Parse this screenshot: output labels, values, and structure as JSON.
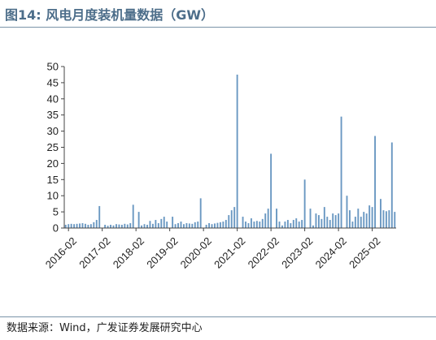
{
  "title": "图14:  风电月度装机量数据（GW）",
  "source": "数据来源：Wind，广发证券发展研究中心",
  "colors": {
    "bar": "#6a98c2",
    "title": "#4d6e8a",
    "axis": "#444444"
  },
  "chart_data": {
    "type": "bar",
    "title": "风电月度装机量数据（GW）",
    "xlabel": "",
    "ylabel": "",
    "ylim": [
      0,
      50
    ],
    "yticks": [
      0,
      5,
      10,
      15,
      20,
      25,
      30,
      35,
      40,
      45,
      50
    ],
    "xtick_labels": [
      "2016-02",
      "2017-02",
      "2018-02",
      "2019-02",
      "2020-02",
      "2021-02",
      "2022-02",
      "2023-02",
      "2024-02",
      "2025-02"
    ],
    "grid": false,
    "legend": "none",
    "start": "2016-01",
    "values": [
      1.0,
      1.2,
      1.3,
      1.2,
      1.3,
      1.4,
      1.5,
      1.3,
      1.0,
      1.2,
      1.8,
      2.5,
      6.8,
      0,
      1.0,
      0.7,
      1.0,
      0.8,
      1.2,
      1.1,
      1.0,
      1.3,
      1.1,
      1.5,
      7.2,
      0,
      5.0,
      0.8,
      1.2,
      1.0,
      2.2,
      1.3,
      2.5,
      1.5,
      2.8,
      3.5,
      2.0,
      0,
      3.5,
      1.2,
      1.5,
      2.0,
      1.2,
      1.5,
      1.4,
      1.3,
      1.8,
      2.0,
      9.2,
      0,
      1.0,
      1.5,
      1.2,
      1.4,
      1.6,
      1.8,
      2.0,
      2.5,
      4.0,
      5.5,
      6.5,
      47.5,
      0,
      3.5,
      2.0,
      1.5,
      3.0,
      2.0,
      2.2,
      2.0,
      2.8,
      4.5,
      6.0,
      23.0,
      0,
      6.0,
      2.0,
      0.8,
      2.0,
      2.5,
      1.5,
      2.5,
      3.0,
      2.0,
      2.5,
      15.0,
      0,
      6.0,
      0.8,
      4.5,
      4.0,
      2.8,
      6.5,
      3.5,
      2.5,
      4.5,
      4.0,
      4.5,
      34.5,
      0,
      10.0,
      5.5,
      2.0,
      3.5,
      6.0,
      3.5,
      5.0,
      4.5,
      7.0,
      6.5,
      28.5,
      0,
      9.0,
      5.5,
      5.2,
      5.5,
      26.5,
      5.0
    ]
  }
}
